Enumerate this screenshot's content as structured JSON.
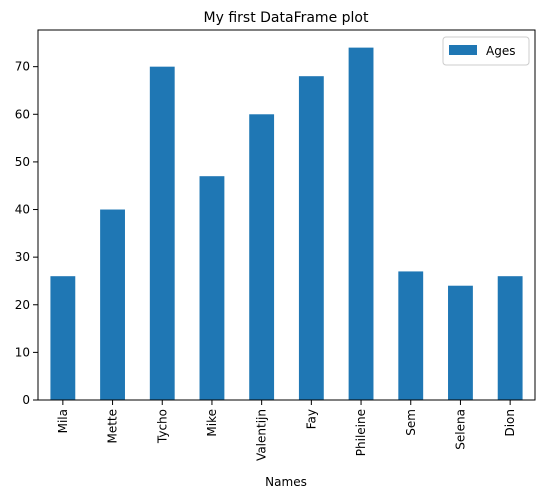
{
  "chart_data": {
    "type": "bar",
    "title": "My first DataFrame plot",
    "xlabel": "Names",
    "ylabel": "",
    "categories": [
      "Mila",
      "Mette",
      "Tycho",
      "Mike",
      "Valentijn",
      "Fay",
      "Phileine",
      "Sem",
      "Selena",
      "Dion"
    ],
    "series": [
      {
        "name": "Ages",
        "values": [
          26,
          40,
          70,
          47,
          60,
          68,
          74,
          27,
          24,
          26
        ]
      }
    ],
    "ylim": [
      0,
      77.7
    ],
    "yticks": [
      0,
      10,
      20,
      30,
      40,
      50,
      60,
      70
    ],
    "grid": false,
    "legend": "top-right",
    "colors": {
      "bar": "#1f77b4"
    }
  }
}
